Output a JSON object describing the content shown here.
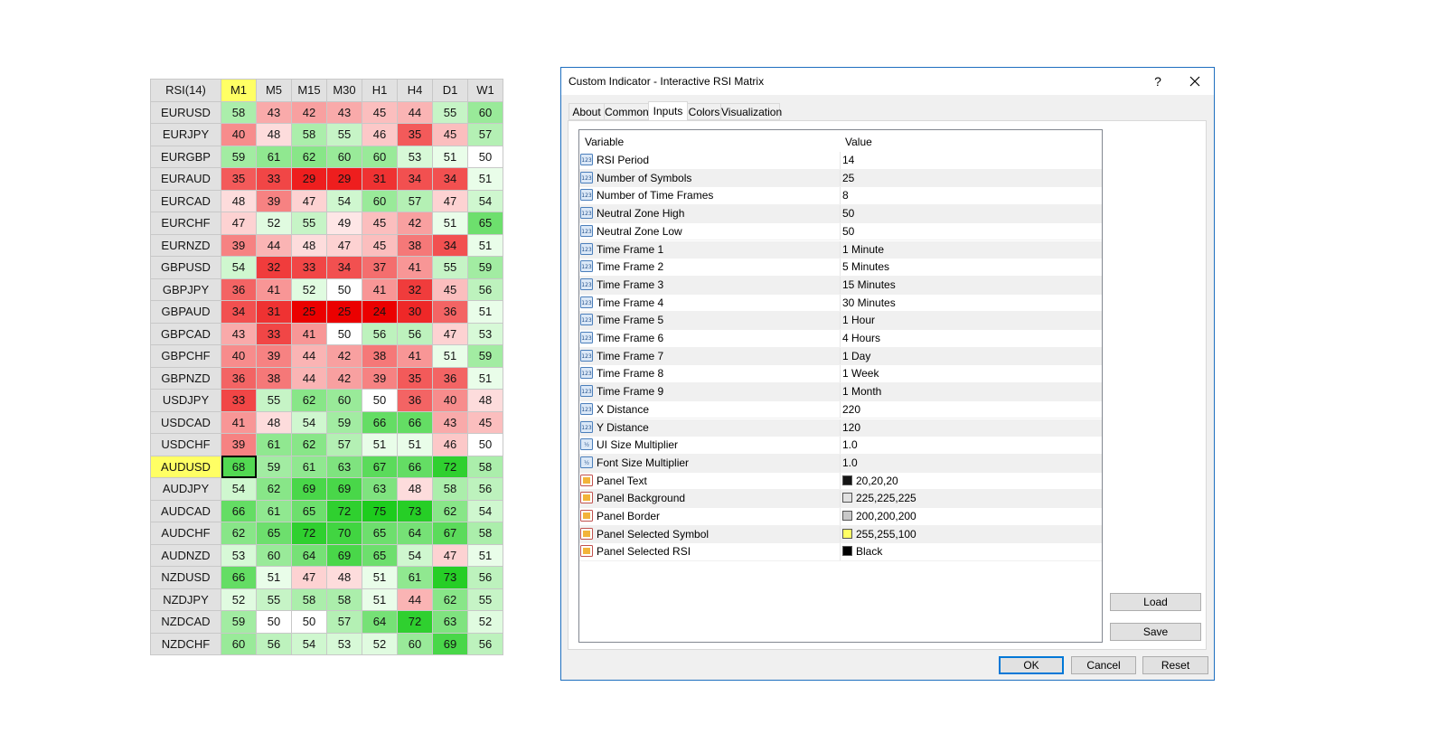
{
  "matrix": {
    "corner_label": "RSI(14)",
    "timeframes": [
      "M1",
      "M5",
      "M15",
      "M30",
      "H1",
      "H4",
      "D1",
      "W1"
    ],
    "highlighted_timeframe": "M1",
    "selected_symbol": "AUDUSD",
    "rows": [
      {
        "symbol": "EURUSD",
        "values": [
          58,
          43,
          42,
          43,
          45,
          44,
          55,
          60
        ]
      },
      {
        "symbol": "EURJPY",
        "values": [
          40,
          48,
          58,
          55,
          46,
          35,
          45,
          57
        ]
      },
      {
        "symbol": "EURGBP",
        "values": [
          59,
          61,
          62,
          60,
          60,
          53,
          51,
          50
        ]
      },
      {
        "symbol": "EURAUD",
        "values": [
          35,
          33,
          29,
          29,
          31,
          34,
          34,
          51
        ]
      },
      {
        "symbol": "EURCAD",
        "values": [
          48,
          39,
          47,
          54,
          60,
          57,
          47,
          54
        ]
      },
      {
        "symbol": "EURCHF",
        "values": [
          47,
          52,
          55,
          49,
          45,
          42,
          51,
          65
        ]
      },
      {
        "symbol": "EURNZD",
        "values": [
          39,
          44,
          48,
          47,
          45,
          38,
          34,
          51
        ]
      },
      {
        "symbol": "GBPUSD",
        "values": [
          54,
          32,
          33,
          34,
          37,
          41,
          55,
          59
        ]
      },
      {
        "symbol": "GBPJPY",
        "values": [
          36,
          41,
          52,
          50,
          41,
          32,
          45,
          56
        ]
      },
      {
        "symbol": "GBPAUD",
        "values": [
          34,
          31,
          25,
          25,
          24,
          30,
          36,
          51
        ]
      },
      {
        "symbol": "GBPCAD",
        "values": [
          43,
          33,
          41,
          50,
          56,
          56,
          47,
          53
        ]
      },
      {
        "symbol": "GBPCHF",
        "values": [
          40,
          39,
          44,
          42,
          38,
          41,
          51,
          59
        ]
      },
      {
        "symbol": "GBPNZD",
        "values": [
          36,
          38,
          44,
          42,
          39,
          35,
          36,
          51
        ]
      },
      {
        "symbol": "USDJPY",
        "values": [
          33,
          55,
          62,
          60,
          50,
          36,
          40,
          48
        ]
      },
      {
        "symbol": "USDCAD",
        "values": [
          41,
          48,
          54,
          59,
          66,
          66,
          43,
          45
        ]
      },
      {
        "symbol": "USDCHF",
        "values": [
          39,
          61,
          62,
          57,
          51,
          51,
          46,
          50
        ]
      },
      {
        "symbol": "AUDUSD",
        "values": [
          68,
          59,
          61,
          63,
          67,
          66,
          72,
          58
        ]
      },
      {
        "symbol": "AUDJPY",
        "values": [
          54,
          62,
          69,
          69,
          63,
          48,
          58,
          56
        ]
      },
      {
        "symbol": "AUDCAD",
        "values": [
          66,
          61,
          65,
          72,
          75,
          73,
          62,
          54
        ]
      },
      {
        "symbol": "AUDCHF",
        "values": [
          62,
          65,
          72,
          70,
          65,
          64,
          67,
          58
        ]
      },
      {
        "symbol": "AUDNZD",
        "values": [
          53,
          60,
          64,
          69,
          65,
          54,
          47,
          51
        ]
      },
      {
        "symbol": "NZDUSD",
        "values": [
          66,
          51,
          47,
          48,
          51,
          61,
          73,
          56
        ]
      },
      {
        "symbol": "NZDJPY",
        "values": [
          52,
          55,
          58,
          58,
          51,
          44,
          62,
          55
        ]
      },
      {
        "symbol": "NZDCAD",
        "values": [
          59,
          50,
          50,
          57,
          64,
          72,
          63,
          52
        ]
      },
      {
        "symbol": "NZDCHF",
        "values": [
          60,
          56,
          54,
          53,
          52,
          60,
          69,
          56
        ]
      }
    ]
  },
  "dialog": {
    "title": "Custom Indicator - Interactive RSI Matrix",
    "help_label": "?",
    "tabs": [
      "About",
      "Common",
      "Inputs",
      "Colors",
      "Visualization"
    ],
    "active_tab": "Inputs",
    "grid": {
      "header_variable": "Variable",
      "header_value": "Value",
      "rows": [
        {
          "variable": "RSI Period",
          "value": "14",
          "icon": "integer-icon"
        },
        {
          "variable": "Number of Symbols",
          "value": "25",
          "icon": "integer-icon"
        },
        {
          "variable": "Number of Time Frames",
          "value": "8",
          "icon": "integer-icon"
        },
        {
          "variable": "Neutral Zone High",
          "value": "50",
          "icon": "integer-icon"
        },
        {
          "variable": "Neutral Zone Low",
          "value": "50",
          "icon": "integer-icon"
        },
        {
          "variable": "Time Frame 1",
          "value": "1 Minute",
          "icon": "integer-icon"
        },
        {
          "variable": "Time Frame 2",
          "value": "5 Minutes",
          "icon": "integer-icon"
        },
        {
          "variable": "Time Frame 3",
          "value": "15 Minutes",
          "icon": "integer-icon"
        },
        {
          "variable": "Time Frame 4",
          "value": "30 Minutes",
          "icon": "integer-icon"
        },
        {
          "variable": "Time Frame 5",
          "value": "1 Hour",
          "icon": "integer-icon"
        },
        {
          "variable": "Time Frame 6",
          "value": "4 Hours",
          "icon": "integer-icon"
        },
        {
          "variable": "Time Frame 7",
          "value": "1 Day",
          "icon": "integer-icon"
        },
        {
          "variable": "Time Frame 8",
          "value": "1 Week",
          "icon": "integer-icon"
        },
        {
          "variable": "Time Frame 9",
          "value": "1 Month",
          "icon": "integer-icon"
        },
        {
          "variable": "X Distance",
          "value": "220",
          "icon": "integer-icon"
        },
        {
          "variable": "Y Distance",
          "value": "120",
          "icon": "integer-icon"
        },
        {
          "variable": "UI Size Multiplier",
          "value": "1.0",
          "icon": "fraction-icon"
        },
        {
          "variable": "Font Size Multiplier",
          "value": "1.0",
          "icon": "fraction-icon"
        },
        {
          "variable": "Panel Text",
          "value": "20,20,20",
          "icon": "color-param-icon",
          "swatch": "#141414"
        },
        {
          "variable": "Panel Background",
          "value": "225,225,225",
          "icon": "color-param-icon",
          "swatch": "#e1e1e1"
        },
        {
          "variable": "Panel Border",
          "value": "200,200,200",
          "icon": "color-param-icon",
          "swatch": "#c8c8c8"
        },
        {
          "variable": "Panel Selected Symbol",
          "value": "255,255,100",
          "icon": "color-param-icon",
          "swatch": "#ffff64"
        },
        {
          "variable": "Panel Selected RSI",
          "value": "Black",
          "icon": "color-param-icon",
          "swatch": "#000000"
        }
      ]
    },
    "buttons": {
      "load": "Load",
      "save": "Save",
      "ok": "OK",
      "cancel": "Cancel",
      "reset": "Reset"
    }
  },
  "colors": {
    "panel_background": "#e1e1e1",
    "panel_border": "#c8c8c8",
    "selected_symbol": "#ffff64",
    "accent": "#0078d7"
  }
}
